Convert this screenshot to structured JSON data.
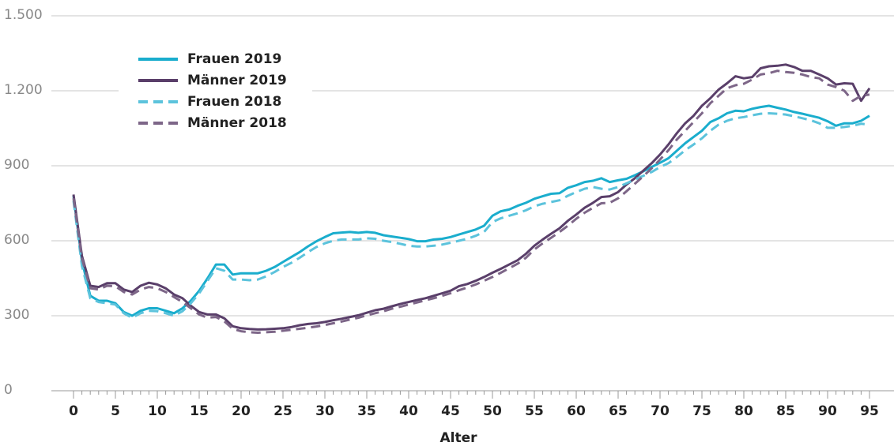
{
  "chart_data": {
    "type": "line",
    "x_label": "Alter",
    "x": [
      0,
      1,
      2,
      3,
      4,
      5,
      6,
      7,
      8,
      9,
      10,
      11,
      12,
      13,
      14,
      15,
      16,
      17,
      18,
      19,
      20,
      21,
      22,
      23,
      24,
      25,
      26,
      27,
      28,
      29,
      30,
      31,
      32,
      33,
      34,
      35,
      36,
      37,
      38,
      39,
      40,
      41,
      42,
      43,
      44,
      45,
      46,
      47,
      48,
      49,
      50,
      51,
      52,
      53,
      54,
      55,
      56,
      57,
      58,
      59,
      60,
      61,
      62,
      63,
      64,
      65,
      66,
      67,
      68,
      69,
      70,
      71,
      72,
      73,
      74,
      75,
      76,
      77,
      78,
      79,
      80,
      81,
      82,
      83,
      84,
      85,
      86,
      87,
      88,
      89,
      90,
      91,
      92,
      93,
      94,
      95
    ],
    "xlim": [
      0,
      95
    ],
    "xticks": [
      0,
      5,
      10,
      15,
      20,
      25,
      30,
      35,
      40,
      45,
      50,
      55,
      60,
      65,
      70,
      75,
      80,
      85,
      90,
      95
    ],
    "ylim": [
      0,
      1500
    ],
    "yticks": [
      0,
      300,
      600,
      900,
      {
        "value": 1200,
        "label": "1.200"
      },
      {
        "value": 1500,
        "label": "1.500"
      }
    ],
    "grid": true,
    "legend": "upper left",
    "series": [
      {
        "name": "Frauen 2019",
        "color": "#1aadcd",
        "dashed": false,
        "values": [
          780,
          520,
          380,
          360,
          360,
          350,
          315,
          300,
          320,
          330,
          330,
          320,
          310,
          330,
          360,
          400,
          450,
          505,
          505,
          465,
          470,
          470,
          470,
          480,
          495,
          515,
          535,
          555,
          578,
          598,
          615,
          630,
          633,
          635,
          632,
          635,
          632,
          622,
          617,
          612,
          607,
          598,
          598,
          605,
          608,
          615,
          625,
          635,
          645,
          660,
          700,
          718,
          725,
          740,
          752,
          768,
          778,
          788,
          790,
          812,
          822,
          835,
          840,
          850,
          835,
          842,
          848,
          862,
          878,
          895,
          912,
          930,
          960,
          990,
          1015,
          1040,
          1075,
          1090,
          1110,
          1120,
          1118,
          1128,
          1135,
          1140,
          1132,
          1125,
          1115,
          1108,
          1100,
          1092,
          1078,
          1060,
          1070,
          1070,
          1080,
          1100
        ]
      },
      {
        "name": "Männer 2019",
        "color": "#5a3f6a",
        "dashed": false,
        "values": [
          785,
          540,
          420,
          415,
          430,
          430,
          405,
          395,
          420,
          432,
          425,
          410,
          385,
          370,
          340,
          315,
          305,
          305,
          290,
          258,
          250,
          247,
          245,
          246,
          248,
          250,
          255,
          262,
          267,
          270,
          275,
          282,
          288,
          295,
          302,
          312,
          322,
          328,
          338,
          347,
          355,
          363,
          370,
          380,
          390,
          400,
          418,
          427,
          440,
          455,
          472,
          488,
          505,
          522,
          548,
          580,
          605,
          628,
          650,
          680,
          705,
          732,
          752,
          775,
          778,
          795,
          825,
          850,
          880,
          910,
          945,
          985,
          1030,
          1070,
          1100,
          1140,
          1170,
          1205,
          1230,
          1258,
          1250,
          1255,
          1290,
          1298,
          1300,
          1305,
          1295,
          1280,
          1280,
          1265,
          1250,
          1225,
          1230,
          1228,
          1160,
          1210
        ]
      },
      {
        "name": "Frauen 2018",
        "color": "#5cc3dc",
        "dashed": true,
        "values": [
          760,
          500,
          370,
          355,
          350,
          345,
          310,
          292,
          310,
          320,
          318,
          310,
          300,
          318,
          350,
          390,
          440,
          490,
          480,
          445,
          445,
          442,
          445,
          458,
          475,
          495,
          512,
          532,
          555,
          575,
          590,
          600,
          605,
          605,
          605,
          610,
          608,
          600,
          595,
          588,
          580,
          577,
          577,
          580,
          585,
          592,
          600,
          608,
          620,
          635,
          675,
          690,
          700,
          710,
          722,
          738,
          748,
          755,
          762,
          780,
          795,
          808,
          815,
          808,
          805,
          815,
          830,
          845,
          860,
          875,
          895,
          910,
          935,
          962,
          985,
          1010,
          1040,
          1065,
          1080,
          1090,
          1095,
          1102,
          1108,
          1110,
          1108,
          1105,
          1098,
          1090,
          1082,
          1070,
          1052,
          1052,
          1055,
          1060,
          1068,
          1065
        ]
      },
      {
        "name": "Männer 2018",
        "color": "#7d6688",
        "dashed": true,
        "values": [
          770,
          530,
          410,
          405,
          420,
          418,
          395,
          385,
          405,
          415,
          410,
          395,
          375,
          355,
          330,
          305,
          292,
          295,
          278,
          248,
          238,
          234,
          232,
          234,
          236,
          240,
          244,
          248,
          252,
          257,
          263,
          270,
          277,
          285,
          292,
          302,
          310,
          318,
          328,
          336,
          345,
          353,
          362,
          370,
          380,
          390,
          402,
          413,
          425,
          440,
          455,
          472,
          490,
          508,
          532,
          565,
          590,
          612,
          635,
          660,
          688,
          712,
          732,
          750,
          752,
          770,
          798,
          828,
          858,
          890,
          925,
          962,
          1005,
          1040,
          1075,
          1110,
          1150,
          1180,
          1210,
          1222,
          1228,
          1245,
          1265,
          1270,
          1280,
          1275,
          1272,
          1265,
          1255,
          1250,
          1225,
          1215,
          1200,
          1160,
          1180,
          1185
        ]
      }
    ]
  }
}
